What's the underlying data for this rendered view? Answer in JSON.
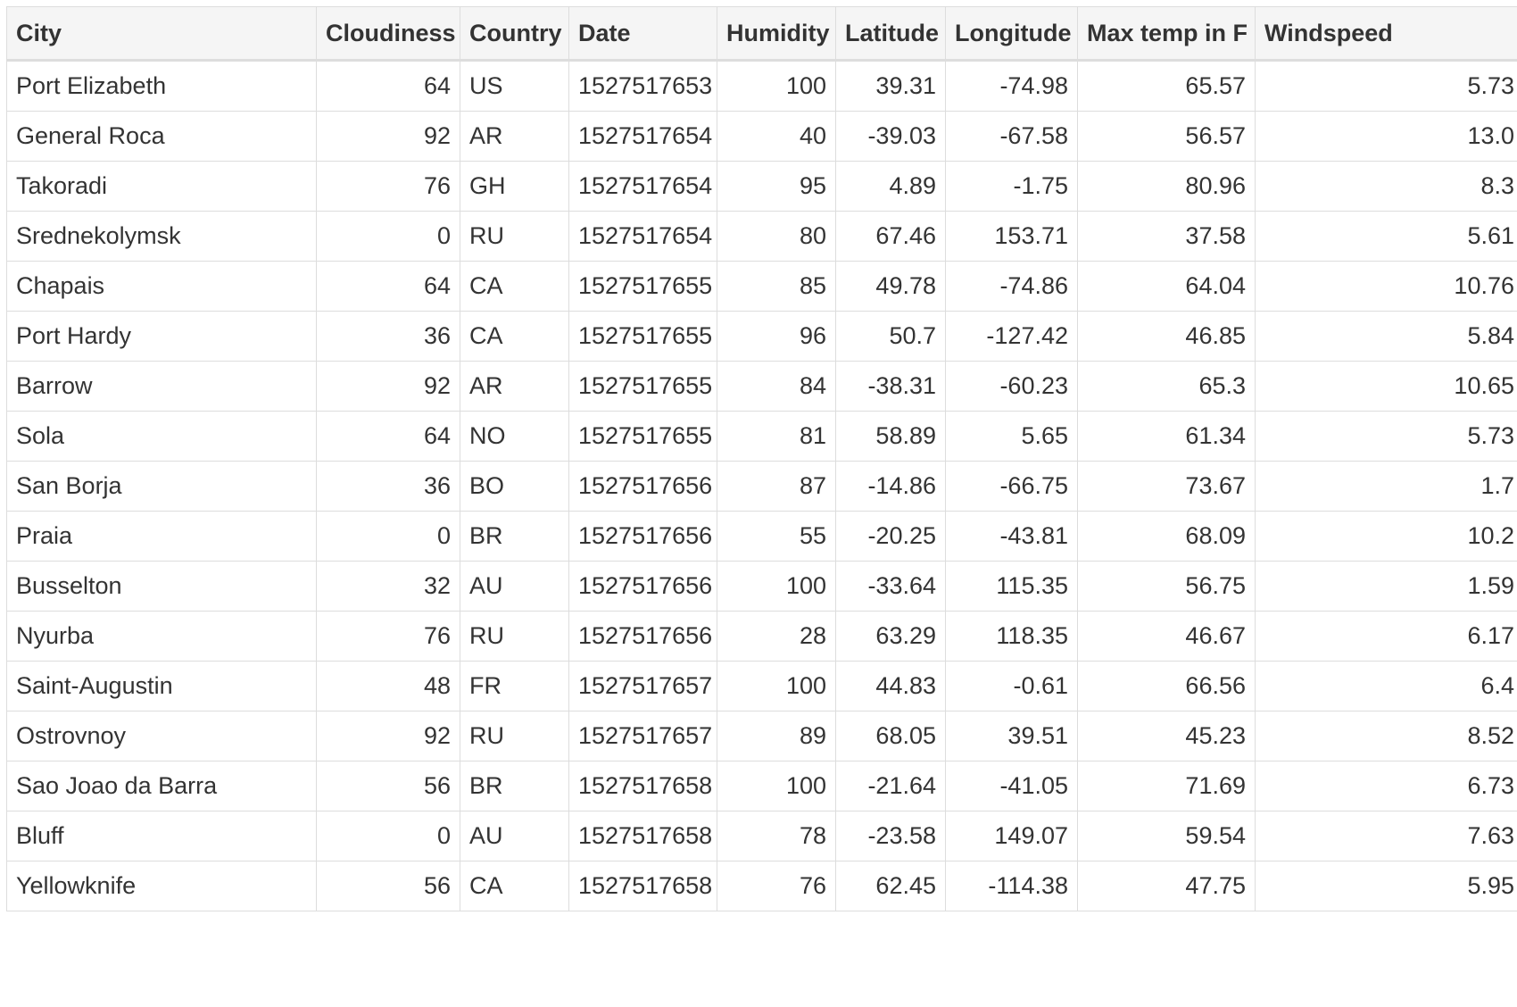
{
  "table": {
    "columns": [
      "City",
      "Cloudiness",
      "Country",
      "Date",
      "Humidity",
      "Latitude",
      "Longitude",
      "Max temp in F",
      "Windspeed"
    ],
    "rows": [
      [
        "Port Elizabeth",
        "64",
        "US",
        "1527517653",
        "100",
        "39.31",
        "-74.98",
        "65.57",
        "5.73"
      ],
      [
        "General Roca",
        "92",
        "AR",
        "1527517654",
        "40",
        "-39.03",
        "-67.58",
        "56.57",
        "13.0"
      ],
      [
        "Takoradi",
        "76",
        "GH",
        "1527517654",
        "95",
        "4.89",
        "-1.75",
        "80.96",
        "8.3"
      ],
      [
        "Srednekolymsk",
        "0",
        "RU",
        "1527517654",
        "80",
        "67.46",
        "153.71",
        "37.58",
        "5.61"
      ],
      [
        "Chapais",
        "64",
        "CA",
        "1527517655",
        "85",
        "49.78",
        "-74.86",
        "64.04",
        "10.76"
      ],
      [
        "Port Hardy",
        "36",
        "CA",
        "1527517655",
        "96",
        "50.7",
        "-127.42",
        "46.85",
        "5.84"
      ],
      [
        "Barrow",
        "92",
        "AR",
        "1527517655",
        "84",
        "-38.31",
        "-60.23",
        "65.3",
        "10.65"
      ],
      [
        "Sola",
        "64",
        "NO",
        "1527517655",
        "81",
        "58.89",
        "5.65",
        "61.34",
        "5.73"
      ],
      [
        "San Borja",
        "36",
        "BO",
        "1527517656",
        "87",
        "-14.86",
        "-66.75",
        "73.67",
        "1.7"
      ],
      [
        "Praia",
        "0",
        "BR",
        "1527517656",
        "55",
        "-20.25",
        "-43.81",
        "68.09",
        "10.2"
      ],
      [
        "Busselton",
        "32",
        "AU",
        "1527517656",
        "100",
        "-33.64",
        "115.35",
        "56.75",
        "1.59"
      ],
      [
        "Nyurba",
        "76",
        "RU",
        "1527517656",
        "28",
        "63.29",
        "118.35",
        "46.67",
        "6.17"
      ],
      [
        "Saint-Augustin",
        "48",
        "FR",
        "1527517657",
        "100",
        "44.83",
        "-0.61",
        "66.56",
        "6.4"
      ],
      [
        "Ostrovnoy",
        "92",
        "RU",
        "1527517657",
        "89",
        "68.05",
        "39.51",
        "45.23",
        "8.52"
      ],
      [
        "Sao Joao da Barra",
        "56",
        "BR",
        "1527517658",
        "100",
        "-21.64",
        "-41.05",
        "71.69",
        "6.73"
      ],
      [
        "Bluff",
        "0",
        "AU",
        "1527517658",
        "78",
        "-23.58",
        "149.07",
        "59.54",
        "7.63"
      ],
      [
        "Yellowknife",
        "56",
        "CA",
        "1527517658",
        "76",
        "62.45",
        "-114.38",
        "47.75",
        "5.95"
      ]
    ]
  }
}
